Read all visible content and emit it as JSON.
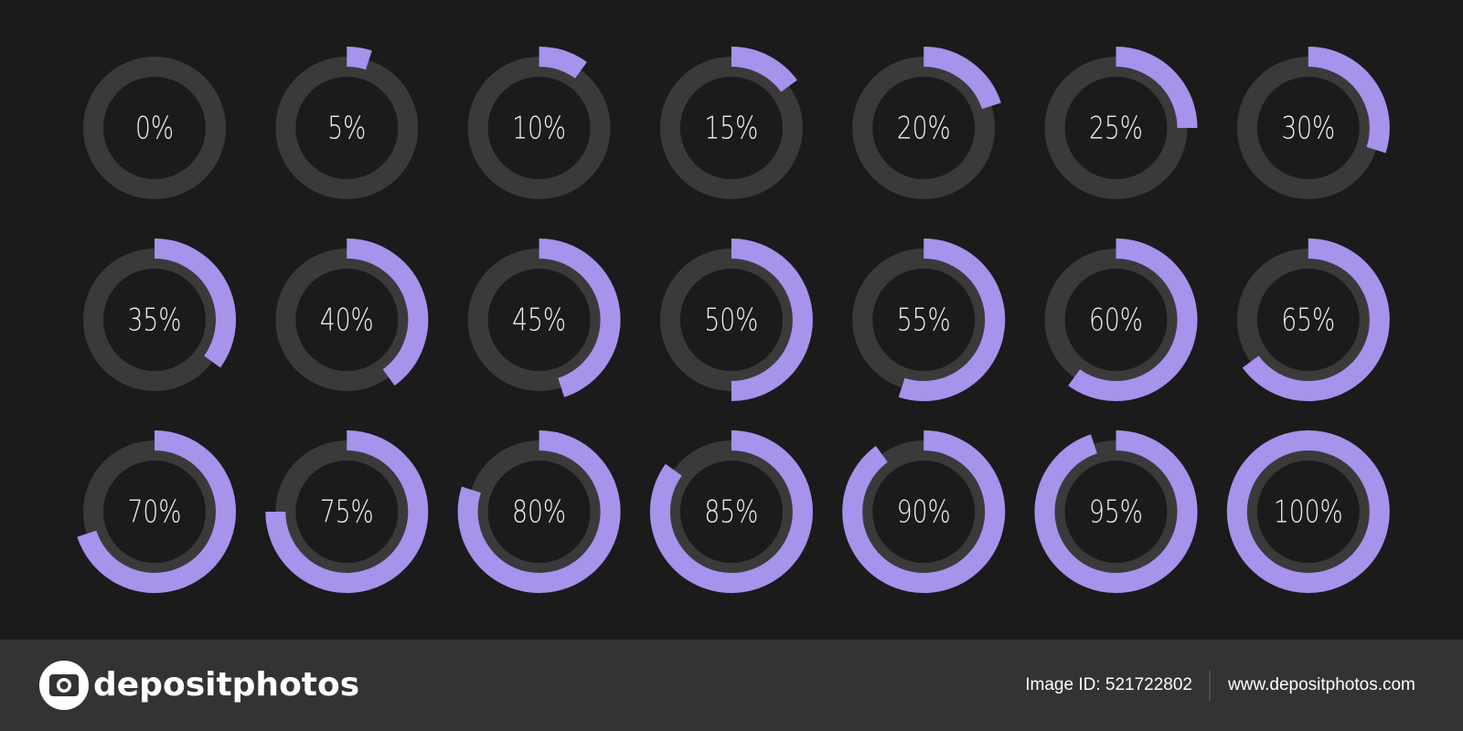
{
  "chart_data": {
    "type": "progress-ring",
    "values": [
      0,
      5,
      10,
      15,
      20,
      25,
      30,
      35,
      40,
      45,
      50,
      55,
      60,
      65,
      70,
      75,
      80,
      85,
      90,
      95,
      100
    ],
    "value_labels": [
      "0%",
      "5%",
      "10%",
      "15%",
      "20%",
      "25%",
      "30%",
      "35%",
      "40%",
      "45%",
      "50%",
      "55%",
      "60%",
      "65%",
      "70%",
      "75%",
      "80%",
      "85%",
      "90%",
      "95%",
      "100%"
    ],
    "max": 100,
    "color": "#a792ec",
    "track_color": "#3a3a3a"
  },
  "footer": {
    "brand": "depositphotos",
    "image_id": "Image ID: 521722802",
    "url": "www.depositphotos.com"
  }
}
